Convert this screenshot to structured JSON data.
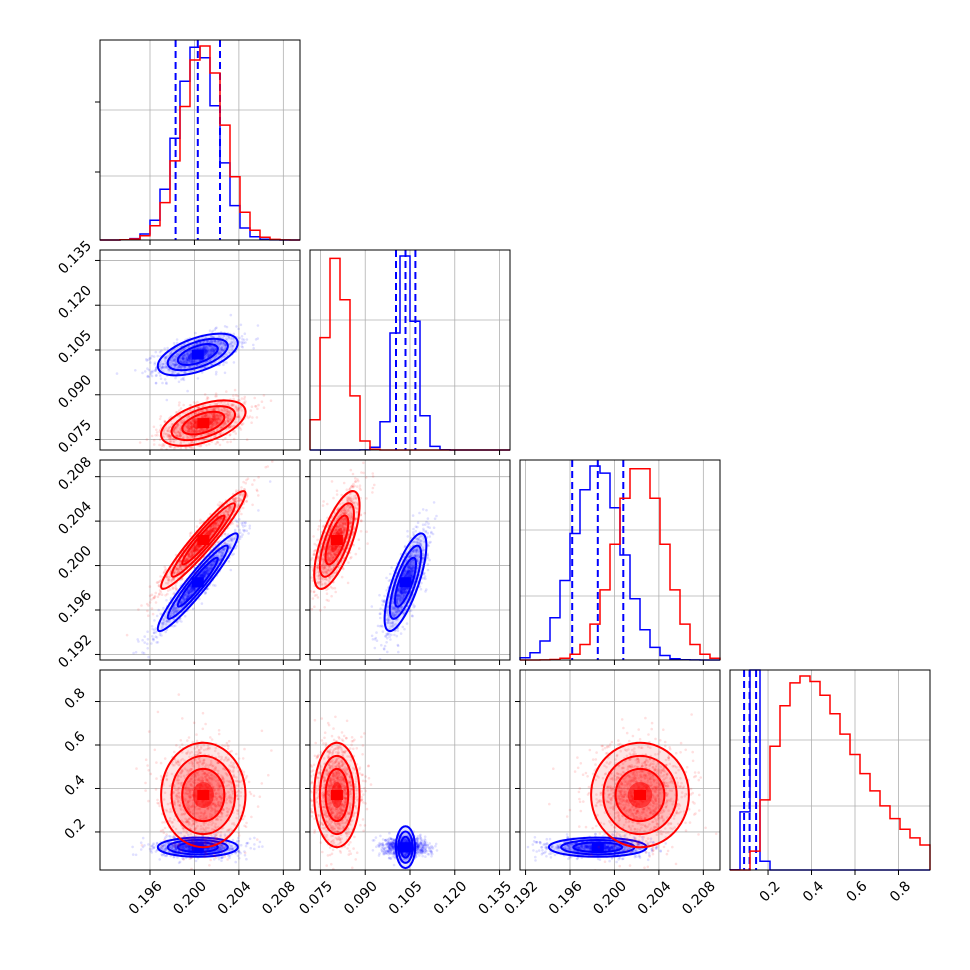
{
  "colors": {
    "blue": "#0000ff",
    "red": "#ff0000",
    "grid": "#b0b0b0"
  },
  "chart_data": {
    "type": "corner",
    "grid": true,
    "parameters": [
      {
        "range": [
          0.1915,
          0.2095
        ],
        "ticks": [
          "0.196",
          "0.200",
          "0.204",
          "0.208"
        ],
        "tick_values": [
          0.196,
          0.2,
          0.204,
          0.208
        ]
      },
      {
        "range": [
          0.0715,
          0.1385
        ],
        "ticks": [
          "0.075",
          "0.090",
          "0.105",
          "0.120",
          "0.135"
        ],
        "tick_values": [
          0.075,
          0.09,
          0.105,
          0.12,
          0.135
        ]
      },
      {
        "range": [
          0.1915,
          0.2095
        ],
        "ticks": [
          "0.192",
          "0.196",
          "0.200",
          "0.204",
          "0.208"
        ],
        "tick_values": [
          0.192,
          0.196,
          0.2,
          0.204,
          0.208
        ]
      },
      {
        "range": [
          0.025,
          0.945
        ],
        "ticks": [
          "0.2",
          "0.4",
          "0.6",
          "0.8"
        ],
        "tick_values": [
          0.2,
          0.4,
          0.6,
          0.8
        ]
      }
    ],
    "series": [
      {
        "color": "#0000ff",
        "means": [
          0.2003,
          0.1035,
          0.1985,
          0.13
        ],
        "sigmas": [
          0.0018,
          0.0035,
          0.0022,
          0.022
        ],
        "correlations": {
          "0-1": 0.55,
          "0-2": 0.95,
          "1-2": 0.75,
          "0-3": 0.0,
          "1-3": 0.0,
          "2-3": 0.0
        },
        "quantiles": [
          [
            0.1983,
            0.2003,
            0.2023
          ],
          [
            0.1003,
            0.1035,
            0.1068
          ],
          [
            0.1962,
            0.1985,
            0.2008
          ],
          [
            0.09,
            0.115,
            0.145
          ]
        ]
      },
      {
        "color": "#ff0000",
        "means": [
          0.2008,
          0.0805,
          0.2023,
          0.37
        ],
        "sigmas": [
          0.0019,
          0.0038,
          0.0022,
          0.12
        ],
        "correlations": {
          "0-1": 0.5,
          "0-2": 0.95,
          "1-2": 0.7,
          "0-3": 0.0,
          "1-3": 0.0,
          "2-3": 0.0
        },
        "quantiles": null
      }
    ]
  }
}
